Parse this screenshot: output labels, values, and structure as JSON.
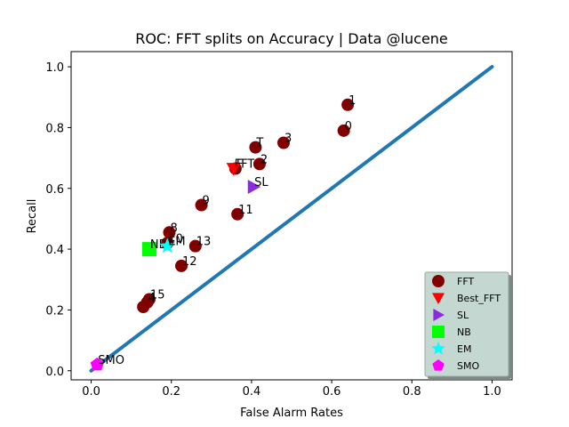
{
  "chart_data": {
    "type": "scatter",
    "title": "ROC: FFT splits on Accuracy  |  Data @lucene",
    "xlabel": "False Alarm Rates",
    "ylabel": "Recall",
    "xlim": [
      -0.05,
      1.05
    ],
    "ylim": [
      -0.03,
      1.05
    ],
    "xticks": [
      0.0,
      0.2,
      0.4,
      0.6,
      0.8,
      1.0
    ],
    "yticks": [
      0.0,
      0.2,
      0.4,
      0.6,
      0.8,
      1.0
    ],
    "xtick_labels": [
      "0.0",
      "0.2",
      "0.4",
      "0.6",
      "0.8",
      "1.0"
    ],
    "ytick_labels": [
      "0.0",
      "0.2",
      "0.4",
      "0.6",
      "0.8",
      "1.0"
    ],
    "grid": false,
    "legend_position": "bottom-right",
    "diagonal": {
      "x": [
        0.0,
        1.0
      ],
      "y": [
        0.0,
        1.0
      ],
      "color": "#1f77b4"
    },
    "series": [
      {
        "name": "FFT",
        "marker": "circle",
        "color": "#800000",
        "points": [
          {
            "x": 0.64,
            "y": 0.875,
            "label": "1"
          },
          {
            "x": 0.63,
            "y": 0.79,
            "label": "0"
          },
          {
            "x": 0.48,
            "y": 0.75,
            "label": "3"
          },
          {
            "x": 0.41,
            "y": 0.735,
            "label": "T"
          },
          {
            "x": 0.42,
            "y": 0.68,
            "label": "2"
          },
          {
            "x": 0.36,
            "y": 0.665,
            "label": "F"
          },
          {
            "x": 0.275,
            "y": 0.545,
            "label": "9"
          },
          {
            "x": 0.365,
            "y": 0.515,
            "label": "11"
          },
          {
            "x": 0.195,
            "y": 0.455,
            "label": "8"
          },
          {
            "x": 0.19,
            "y": 0.42,
            "label": "10"
          },
          {
            "x": 0.26,
            "y": 0.41,
            "label": "13"
          },
          {
            "x": 0.225,
            "y": 0.345,
            "label": "12"
          },
          {
            "x": 0.145,
            "y": 0.235,
            "label": "15"
          },
          {
            "x": 0.14,
            "y": 0.225,
            "label": "4"
          },
          {
            "x": 0.13,
            "y": 0.21,
            "label": ""
          }
        ]
      },
      {
        "name": "Best_FFT",
        "marker": "triangle-down",
        "color": "#ff0000",
        "points": [
          {
            "x": 0.355,
            "y": 0.665,
            "label": "FFT"
          }
        ]
      },
      {
        "name": "SL",
        "marker": "triangle-right",
        "color": "#8a2be2",
        "points": [
          {
            "x": 0.405,
            "y": 0.605,
            "label": "SL"
          }
        ]
      },
      {
        "name": "NB",
        "marker": "square",
        "color": "#00ff00",
        "points": [
          {
            "x": 0.145,
            "y": 0.4,
            "label": "NB"
          }
        ]
      },
      {
        "name": "EM",
        "marker": "star",
        "color": "#00ffff",
        "points": [
          {
            "x": 0.19,
            "y": 0.41,
            "label": "EM"
          }
        ]
      },
      {
        "name": "SMO",
        "marker": "pentagon",
        "color": "#ff00ff",
        "points": [
          {
            "x": 0.015,
            "y": 0.02,
            "label": "SMO"
          }
        ]
      }
    ]
  }
}
